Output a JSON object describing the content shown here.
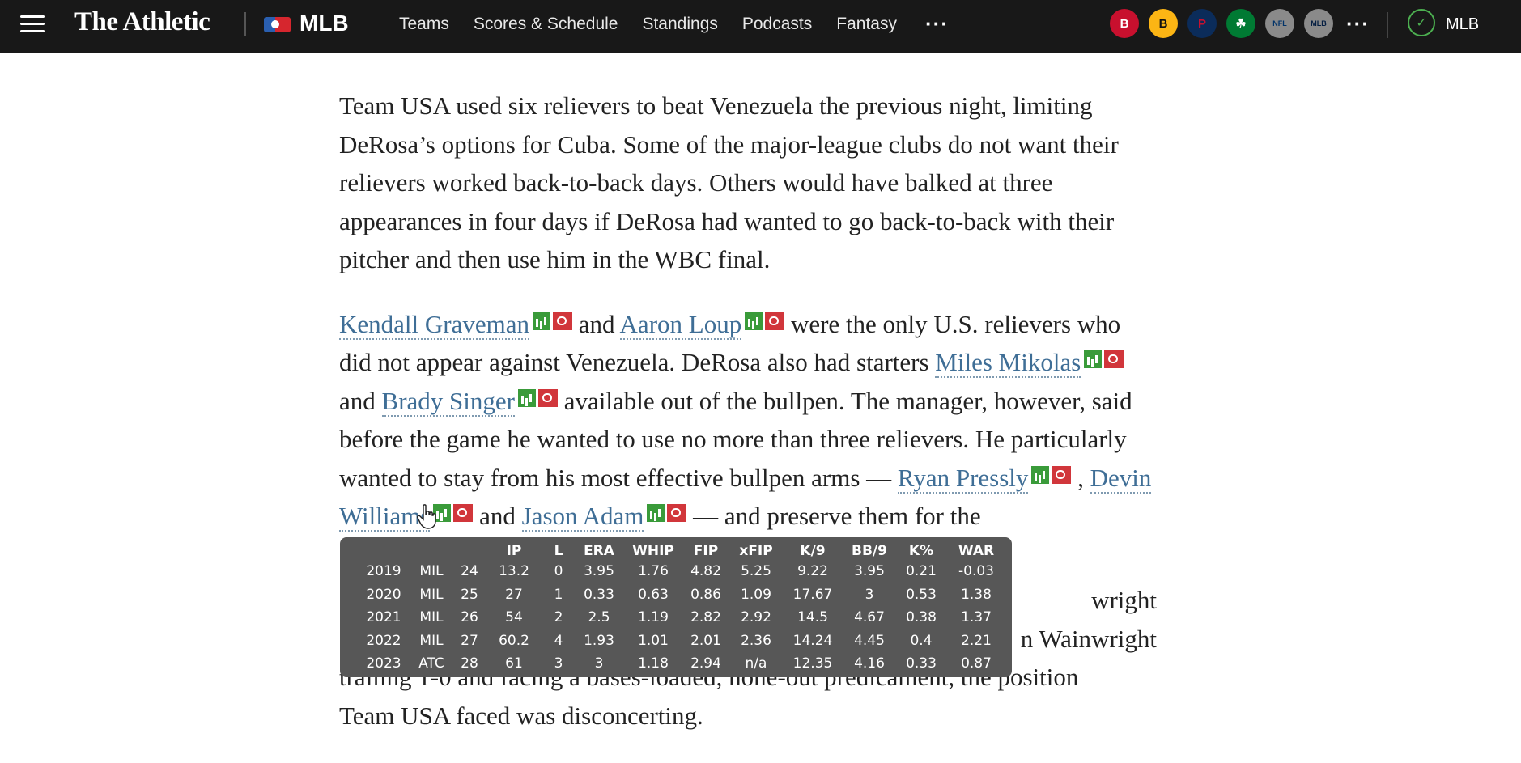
{
  "header": {
    "brand": "The Athletic",
    "league": "MLB",
    "nav_links": [
      "Teams",
      "Scores & Schedule",
      "Standings",
      "Podcasts",
      "Fantasy"
    ],
    "more_label": "···",
    "team_icons": [
      {
        "name": "red-sox-icon",
        "label": "B",
        "bg": "#c8102e",
        "fg": "#ffffff"
      },
      {
        "name": "bruins-icon",
        "label": "B",
        "bg": "#fcb514",
        "fg": "#111111"
      },
      {
        "name": "patriots-icon",
        "label": "P",
        "bg": "#0b2c5a",
        "fg": "#c8102e"
      },
      {
        "name": "celtics-icon",
        "label": "☘",
        "bg": "#007a33",
        "fg": "#ffffff"
      },
      {
        "name": "nfl-icon",
        "label": "NFL",
        "bg": "#8a8a8a",
        "fg": "#013369"
      },
      {
        "name": "mlb-icon",
        "label": "MLB",
        "bg": "#8a8a8a",
        "fg": "#041e42"
      }
    ],
    "icons_more_label": "···",
    "follow_label": "MLB",
    "check_glyph": "✓"
  },
  "article": {
    "paragraph1": "Team USA used six relievers to beat Venezuela the previous night, limiting DeRosa’s options for Cuba. Some of the major-league clubs do not want their relievers worked back-to-back days. Others would have balked at three appearances in four days if DeRosa had wanted to go back-to-back with their pitcher and then use him in the WBC final.",
    "p2": {
      "player1": "Kendall Graveman",
      "t1": " and ",
      "player2": "Aaron Loup",
      "t2": " were the only U.S. relievers who did not appear against Venezuela. DeRosa also had starters ",
      "player3": "Miles Mikolas",
      "t3": " and ",
      "player4": "Brady Singer",
      "t4": " available out of the bullpen. The manager, however, said before the game he wanted to use no more than three relievers. He particularly wanted to stay from his most effective bullpen arms — ",
      "player5": "Ryan Pressly",
      "t5": " , ",
      "player6": "Devin Williams",
      "t6": " and ",
      "player7": "Jason Adam",
      "t7": " — and preserve them for the"
    },
    "p3": {
      "tail_line1": "wright",
      "tail_line2": "n Wainwright",
      "line3": "trailing 1-0 and facing a bases-loaded, none-out predicament, the position",
      "line4": "Team USA faced was disconcerting."
    }
  },
  "tooltip": {
    "headers": [
      "",
      "",
      "",
      "IP",
      "L",
      "ERA",
      "WHIP",
      "FIP",
      "xFIP",
      "K/9",
      "BB/9",
      "K%",
      "WAR"
    ],
    "rows": [
      [
        "2019",
        "MIL",
        "24",
        "13.2",
        "0",
        "3.95",
        "1.76",
        "4.82",
        "5.25",
        "9.22",
        "3.95",
        "0.21",
        "-0.03"
      ],
      [
        "2020",
        "MIL",
        "25",
        "27",
        "1",
        "0.33",
        "0.63",
        "0.86",
        "1.09",
        "17.67",
        "3",
        "0.53",
        "1.38"
      ],
      [
        "2021",
        "MIL",
        "26",
        "54",
        "2",
        "2.5",
        "1.19",
        "2.82",
        "2.92",
        "14.5",
        "4.67",
        "0.38",
        "1.37"
      ],
      [
        "2022",
        "MIL",
        "27",
        "60.2",
        "4",
        "1.93",
        "1.01",
        "2.01",
        "2.36",
        "14.24",
        "4.45",
        "0.4",
        "2.21"
      ],
      [
        "2023",
        "ATC",
        "28",
        "61",
        "3",
        "3",
        "1.18",
        "2.94",
        "n/a",
        "12.35",
        "4.16",
        "0.33",
        "0.87"
      ]
    ]
  }
}
